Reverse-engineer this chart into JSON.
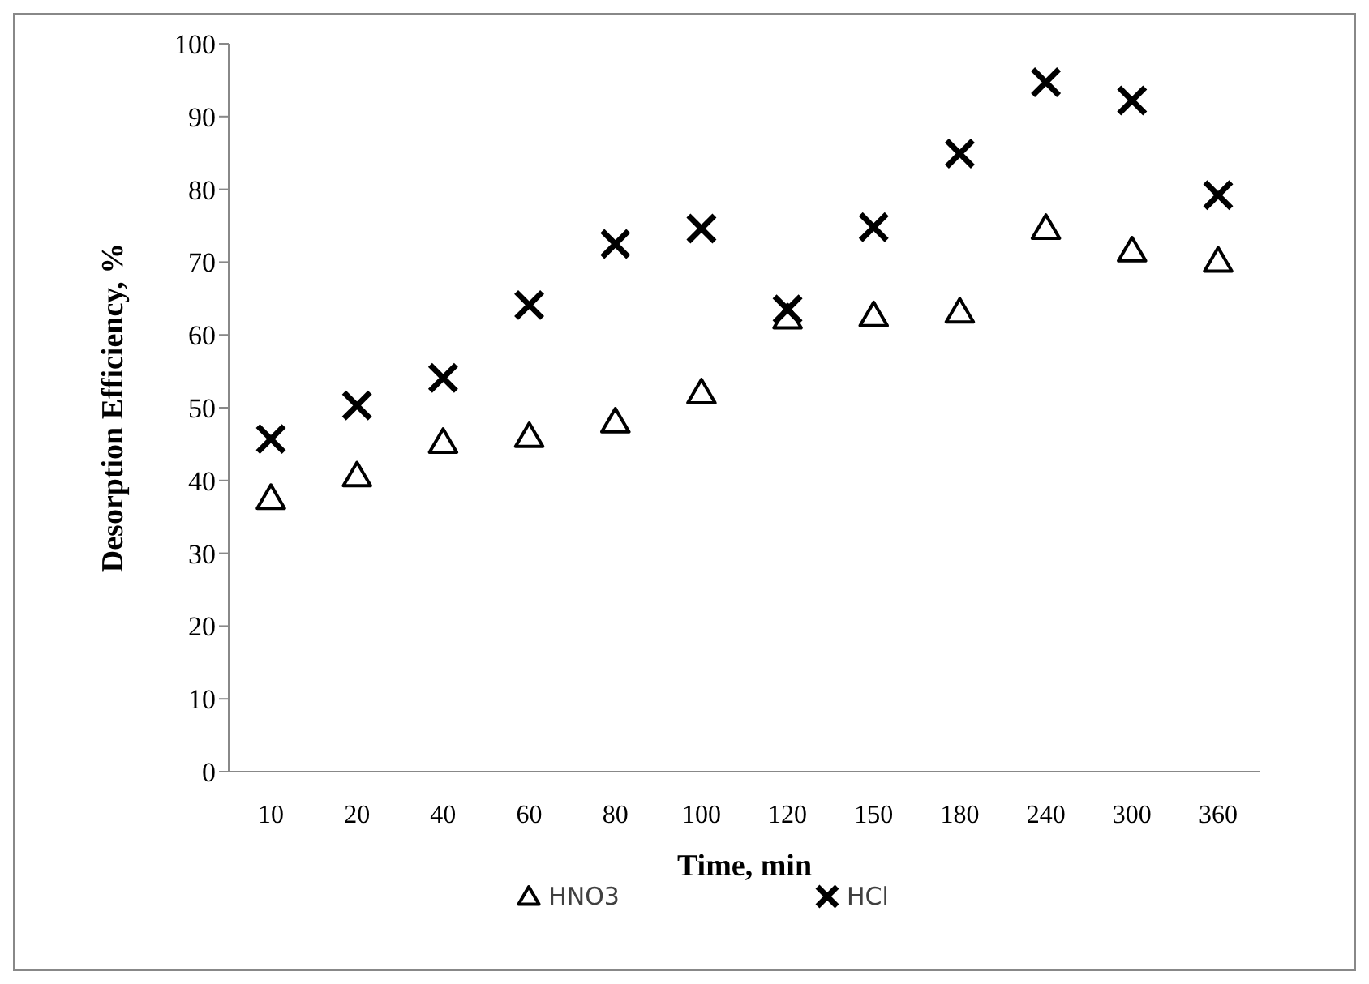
{
  "chart_data": {
    "type": "scatter",
    "xlabel": "Time, min",
    "ylabel": "Desorption Efficiency, %",
    "categories": [
      "10",
      "20",
      "40",
      "60",
      "80",
      "100",
      "120",
      "150",
      "180",
      "240",
      "300",
      "360"
    ],
    "series": [
      {
        "name": "HNO3",
        "color": "#000000",
        "marker": "triangle",
        "values": [
          37.6,
          40.7,
          45.3,
          46.1,
          48.1,
          52.1,
          62.4,
          62.7,
          63.2,
          74.7,
          71.6,
          70.2
        ]
      },
      {
        "name": "HCl",
        "color": "#000000",
        "marker": "cross",
        "values": [
          45.7,
          50.3,
          54.1,
          64.1,
          72.5,
          74.6,
          63.5,
          74.8,
          84.9,
          94.7,
          92.2,
          79.2
        ]
      }
    ],
    "ylim": [
      0,
      100
    ],
    "yticks": [
      0,
      10,
      20,
      30,
      40,
      50,
      60,
      70,
      80,
      90,
      100
    ],
    "legend": "bottom"
  }
}
